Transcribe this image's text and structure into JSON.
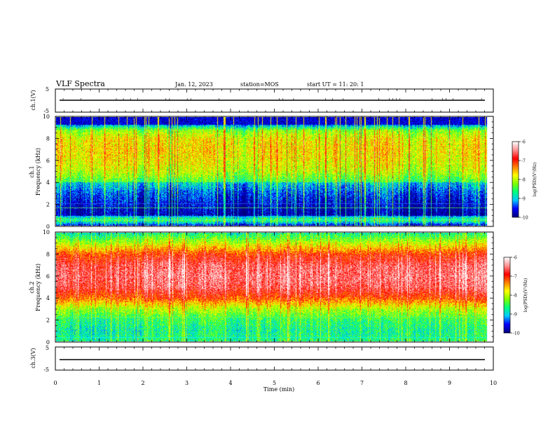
{
  "header": {
    "title": "VLF Spectra",
    "date": "Jan. 12, 2023",
    "station": "station=MOS",
    "start_ut": "start UT =   11: 20: 1"
  },
  "panels": {
    "ch1_wave": {
      "label": "ch.1(V)",
      "ticks": [
        "5",
        "-5"
      ]
    },
    "ch1_spec": {
      "label_top": "ch.1",
      "label_bottom": "Frequency (kHz)",
      "yticks": [
        "10",
        "8",
        "6",
        "4",
        "2",
        "0"
      ]
    },
    "ch2_spec": {
      "label_top": "ch.2",
      "label_bottom": "Frequency (kHz)",
      "yticks": [
        "10",
        "8",
        "6",
        "4",
        "2",
        "0"
      ]
    },
    "ch3_wave": {
      "label": "ch.3(V)",
      "ticks": [
        "5",
        "-5"
      ]
    }
  },
  "colorbar": {
    "label": "log(PSD)(V²/Hz)",
    "ticks": [
      "-6",
      "-7",
      "-8",
      "-9",
      "-10"
    ],
    "colors": [
      "#000080",
      "#0000ff",
      "#00c8ff",
      "#00ff80",
      "#80ff00",
      "#ffff00",
      "#ff8000",
      "#ff0000",
      "#ff9090",
      "#ffffff"
    ]
  },
  "chart_data": {
    "type": "heatmap",
    "title": "VLF Spectra",
    "xlabel": "Time (min)",
    "xlim": [
      0,
      10
    ],
    "xticks": [
      "0",
      "1",
      "2",
      "3",
      "4",
      "5",
      "6",
      "7",
      "8",
      "9",
      "10"
    ],
    "data_end_min": 9.85,
    "channels": [
      {
        "name": "ch.1",
        "ylabel": "Frequency (kHz)",
        "ylim": [
          0,
          10
        ],
        "psd_profile_log": [
          {
            "f": 0.0,
            "v": -9.6
          },
          {
            "f": 0.5,
            "v": -8.4
          },
          {
            "f": 1.0,
            "v": -9.5
          },
          {
            "f": 2.0,
            "v": -9.3
          },
          {
            "f": 3.0,
            "v": -9.0
          },
          {
            "f": 4.0,
            "v": -8.5
          },
          {
            "f": 5.0,
            "v": -8.0
          },
          {
            "f": 6.0,
            "v": -7.8
          },
          {
            "f": 7.0,
            "v": -7.7
          },
          {
            "f": 8.0,
            "v": -7.8
          },
          {
            "f": 8.8,
            "v": -8.2
          },
          {
            "f": 9.3,
            "v": -9.2
          },
          {
            "f": 10.0,
            "v": -10.0
          }
        ]
      },
      {
        "name": "ch.2",
        "ylabel": "Frequency (kHz)",
        "ylim": [
          0,
          10
        ],
        "psd_profile_log": [
          {
            "f": 0.0,
            "v": -8.6
          },
          {
            "f": 1.0,
            "v": -8.7
          },
          {
            "f": 2.0,
            "v": -8.5
          },
          {
            "f": 3.0,
            "v": -8.0
          },
          {
            "f": 4.0,
            "v": -7.1
          },
          {
            "f": 5.0,
            "v": -6.6
          },
          {
            "f": 6.0,
            "v": -6.5
          },
          {
            "f": 7.0,
            "v": -6.6
          },
          {
            "f": 8.0,
            "v": -7.0
          },
          {
            "f": 9.0,
            "v": -7.9
          },
          {
            "f": 10.0,
            "v": -8.7
          }
        ]
      }
    ],
    "waveforms": [
      {
        "name": "ch.1(V)",
        "ylim": [
          -5,
          5
        ],
        "level": 0
      },
      {
        "name": "ch.3(V)",
        "ylim": [
          -5,
          5
        ],
        "level": 0
      }
    ],
    "colorbar": {
      "label": "log(PSD)(V²/Hz)",
      "range": [
        -10,
        -6
      ]
    }
  }
}
